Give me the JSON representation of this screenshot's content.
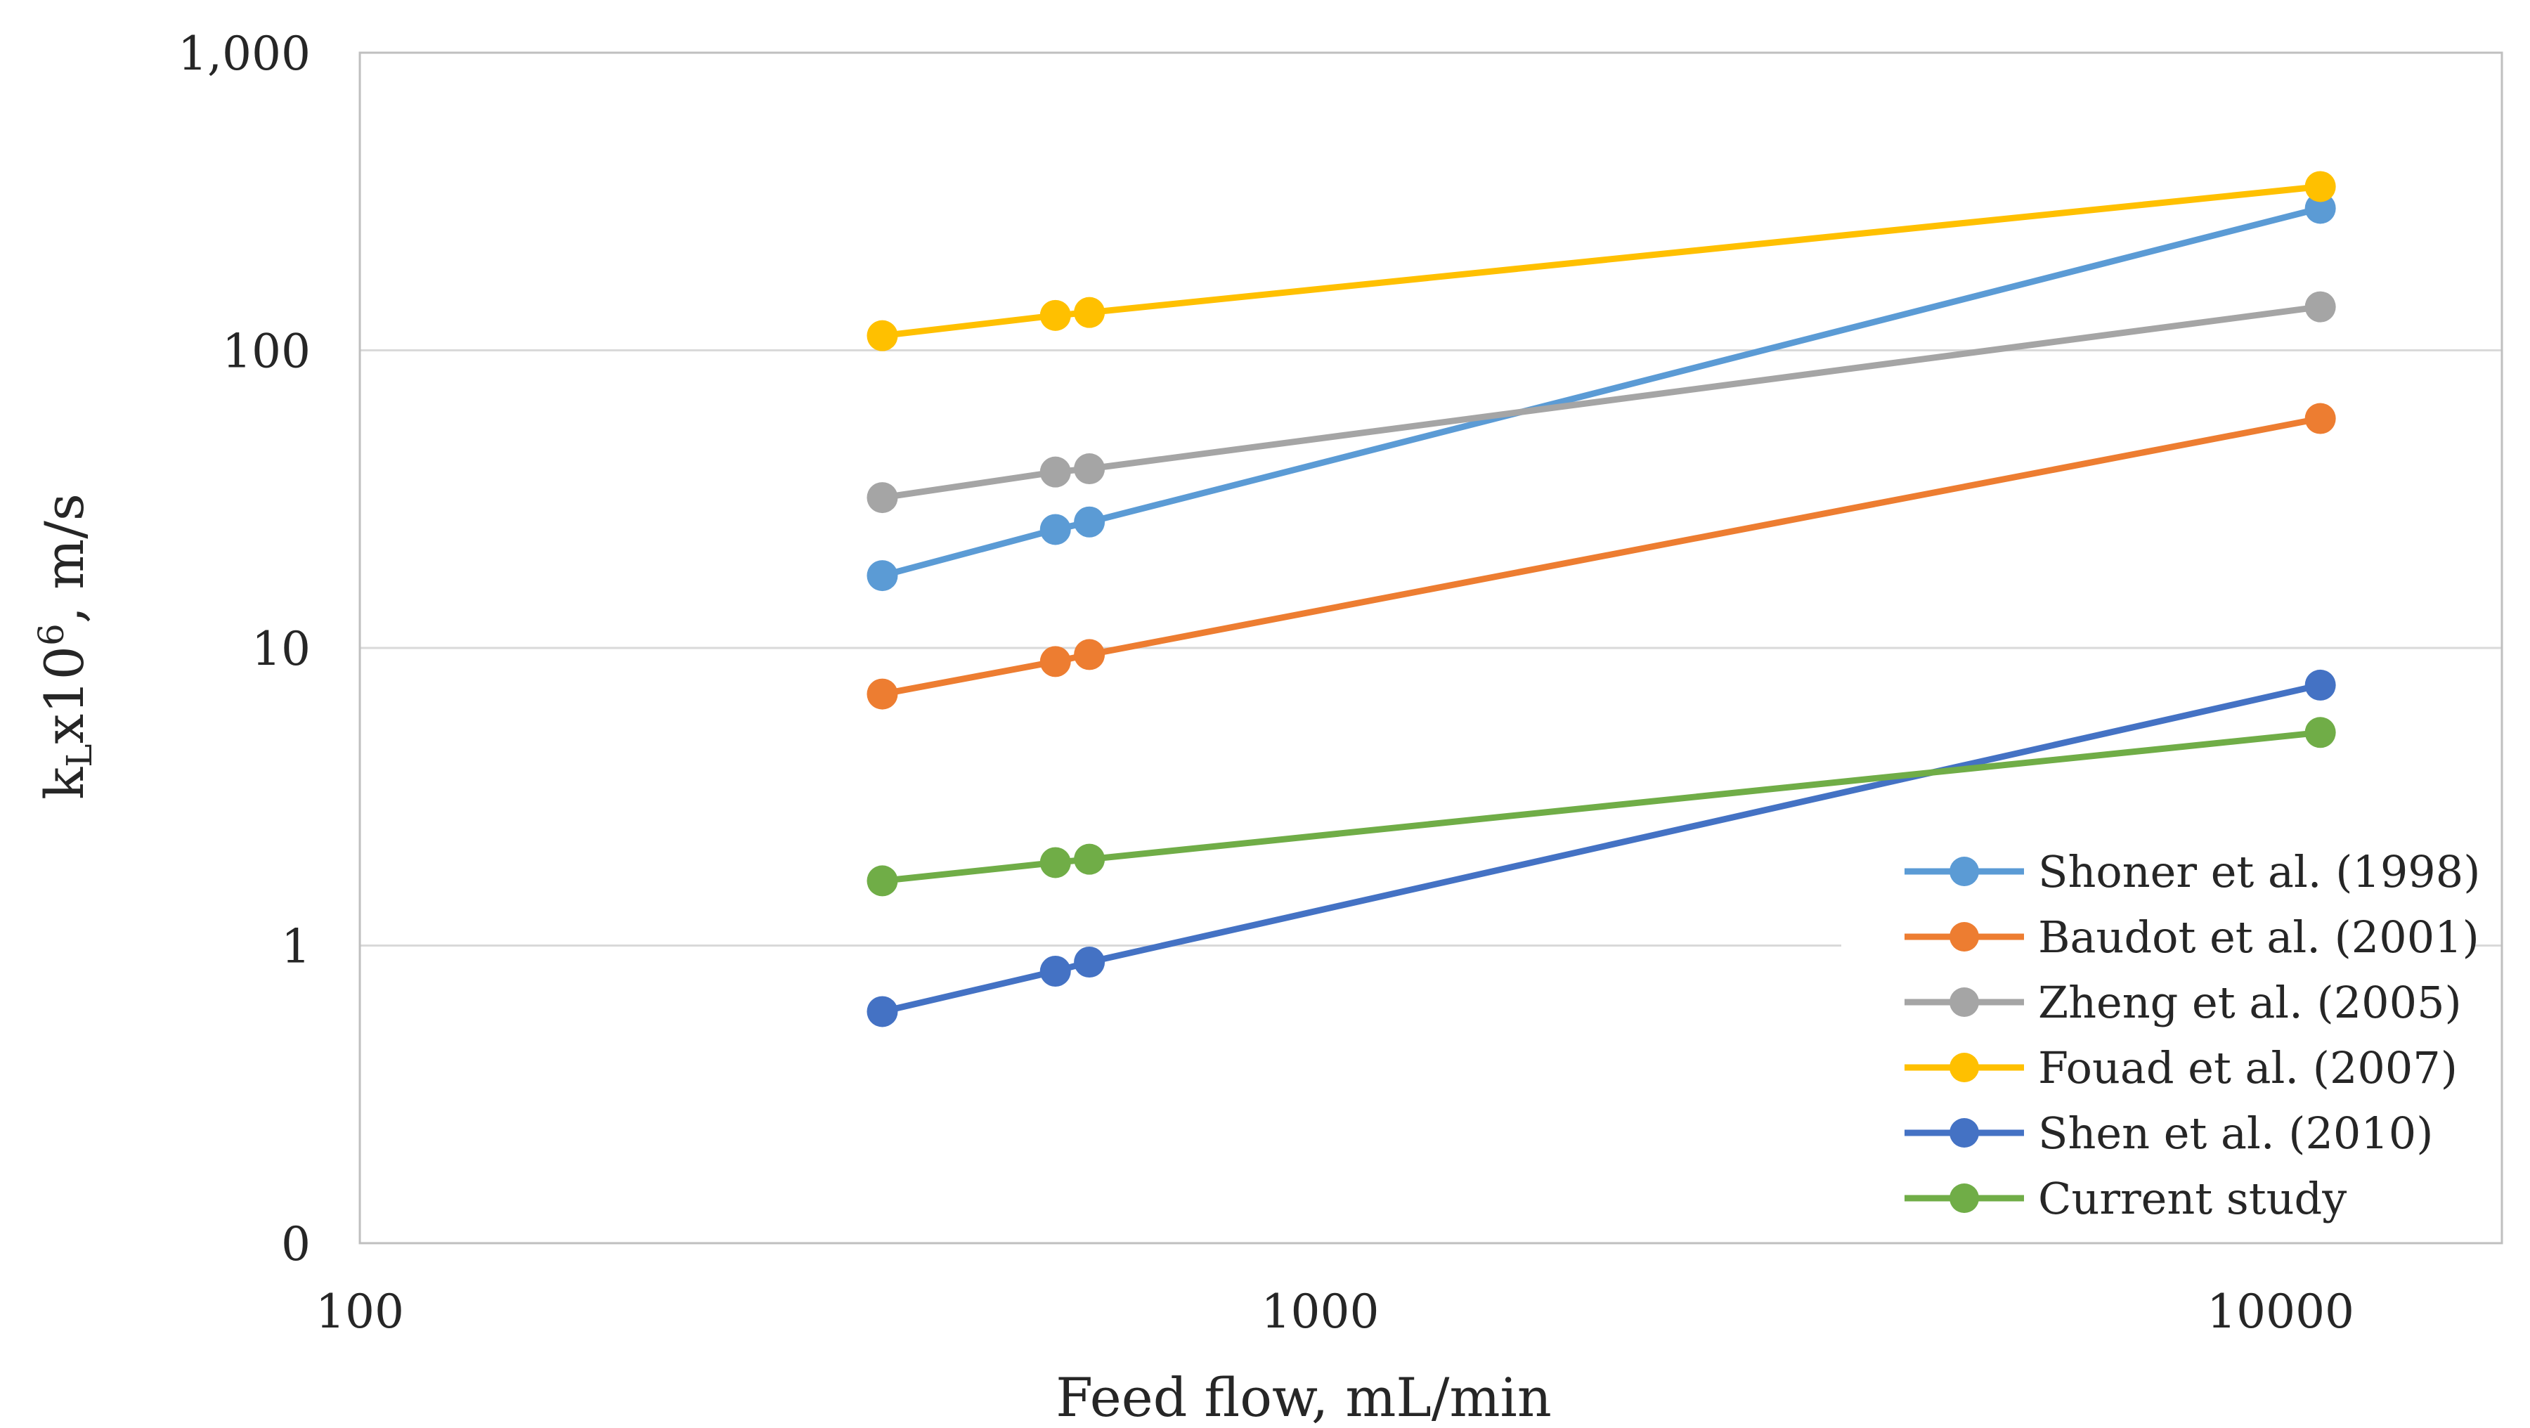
{
  "chart_data": {
    "type": "line",
    "title": "",
    "xlabel": "Feed flow, mL/min",
    "ylabel_main": "k",
    "ylabel_sub": "L",
    "ylabel_mid": "x10",
    "ylabel_sup": "6",
    "ylabel_tail": ", m/s",
    "xscale": "log",
    "yscale": "log",
    "xlim": [
      100,
      17000
    ],
    "ylim": [
      0.1,
      1000
    ],
    "x_ticks": [
      100,
      1000,
      10000
    ],
    "x_tick_labels": [
      "100",
      "1000",
      "10000"
    ],
    "y_ticks": [
      0.1,
      1,
      10,
      100,
      1000
    ],
    "y_tick_labels": [
      "0",
      "1",
      "10",
      "100",
      "1,000"
    ],
    "grid": true,
    "legend_position": "bottom-right",
    "series": [
      {
        "name": "Shoner et al. (1998)",
        "color": "#5b9bd5",
        "x": [
          350,
          530,
          575,
          11000
        ],
        "y": [
          17.5,
          25,
          26.5,
          300
        ]
      },
      {
        "name": "Baudot et al. (2001)",
        "color": "#ed7d31",
        "x": [
          350,
          530,
          575,
          11000
        ],
        "y": [
          7,
          9,
          9.5,
          59
        ]
      },
      {
        "name": "Zheng et al. (2005)",
        "color": "#a5a5a5",
        "x": [
          350,
          530,
          575,
          11000
        ],
        "y": [
          32,
          39,
          40,
          140
        ]
      },
      {
        "name": "Fouad et al. (2007)",
        "color": "#ffc000",
        "x": [
          350,
          530,
          575,
          11000
        ],
        "y": [
          112,
          131,
          134,
          355
        ]
      },
      {
        "name": "Shen et al. (2010)",
        "color": "#4472c4",
        "x": [
          350,
          530,
          575,
          11000
        ],
        "y": [
          0.6,
          0.82,
          0.88,
          7.5
        ]
      },
      {
        "name": "Current study",
        "color": "#70ad47",
        "x": [
          350,
          530,
          575,
          11000
        ],
        "y": [
          1.65,
          1.9,
          1.95,
          5.2
        ]
      }
    ]
  }
}
